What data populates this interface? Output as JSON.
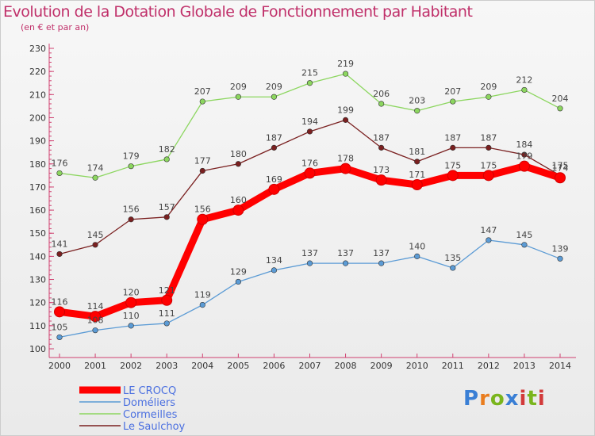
{
  "header": {
    "title": "Evolution de la Dotation Globale de Fonctionnement par Habitant",
    "subtitle": "(en € et par an)"
  },
  "logo": {
    "text": "Proxiti",
    "colors": [
      "#3a7fd5",
      "#e97d1f",
      "#7ab51d",
      "#d23a3a"
    ]
  },
  "chart_data": {
    "type": "line",
    "title": "Evolution de la Dotation Globale de Fonctionnement par Habitant",
    "ylabel": "(en € et par an)",
    "xlabel": "",
    "ylim": [
      100,
      230
    ],
    "yticks": [
      100,
      110,
      120,
      130,
      140,
      150,
      160,
      170,
      180,
      190,
      200,
      210,
      220,
      230
    ],
    "x": [
      "2000",
      "2001",
      "2002",
      "2003",
      "2004",
      "2005",
      "2006",
      "2007",
      "2008",
      "2009",
      "2010",
      "2011",
      "2012",
      "2013",
      "2014"
    ],
    "grid": false,
    "legend_position": "bottom-left",
    "series": [
      {
        "name": "Doméliers",
        "color": "#5b9bd5",
        "values": [
          105,
          108,
          110,
          111,
          119,
          129,
          134,
          137,
          137,
          137,
          140,
          135,
          147,
          145,
          139
        ]
      },
      {
        "name": "Cormeilles",
        "color": "#8cd65f",
        "values": [
          176,
          174,
          179,
          182,
          207,
          209,
          209,
          215,
          219,
          206,
          203,
          207,
          209,
          212,
          204
        ]
      },
      {
        "name": "Le Saulchoy",
        "color": "#7a2020",
        "values": [
          141,
          145,
          156,
          157,
          177,
          180,
          187,
          194,
          199,
          187,
          181,
          187,
          187,
          184,
          175
        ]
      },
      {
        "name": "LE CROCQ",
        "color": "#ff0000",
        "values": [
          116,
          114,
          120,
          121,
          156,
          160,
          169,
          176,
          178,
          173,
          171,
          175,
          175,
          179,
          174
        ]
      }
    ],
    "legend_order": [
      "LE CROCQ",
      "Doméliers",
      "Cormeilles",
      "Le Saulchoy"
    ]
  }
}
